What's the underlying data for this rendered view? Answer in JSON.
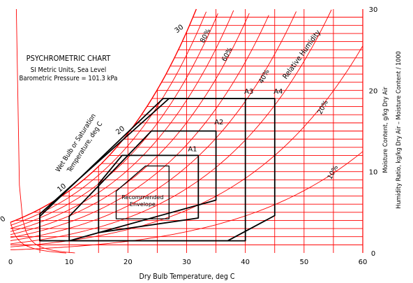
{
  "chart_data": {
    "type": "psychrometric",
    "title": "PSYCHROMETRIC CHART",
    "subtitle_lines": [
      "SI Metric Units, Sea Level",
      "Barometric Pressure = 101.3 kPa"
    ],
    "xlabel": "Dry Bulb Temperature, deg C",
    "ylabel_lines": [
      "Moisture Content, g/kg Dry Air",
      "Humidity Ratio, kg/kg Dry Air – Moisture Content / 1000"
    ],
    "saturation_label_lines": [
      "Wet Bulb or Saturation",
      "Temperature, deg C"
    ],
    "rh_title": "Relative Humidity",
    "xlim": [
      0,
      60
    ],
    "ylim": [
      0,
      30
    ],
    "x_ticks": [
      0,
      10,
      20,
      30,
      40,
      50,
      60
    ],
    "y_ticks": [
      0,
      10,
      20,
      30
    ],
    "x_tick_labels": [
      "0",
      "10",
      "20",
      "30",
      "40",
      "50",
      "60"
    ],
    "y_tick_labels": [
      "0",
      "10",
      "20",
      "30"
    ],
    "wet_bulb_labels": [
      {
        "t": 0,
        "text": "0"
      },
      {
        "t": 10,
        "text": "10"
      },
      {
        "t": 20,
        "text": "20"
      },
      {
        "t": 30,
        "text": "30"
      }
    ],
    "rh_labels": [
      "80%",
      "60%",
      "40%",
      "20%",
      "10%"
    ],
    "rh_label_points": [
      {
        "text": "80%",
        "t": 33.5,
        "w": 26.6
      },
      {
        "text": "60%",
        "t": 37.2,
        "w": 24.3
      },
      {
        "text": "40%",
        "t": 43.5,
        "w": 21.6
      },
      {
        "text": "20%",
        "t": 53.5,
        "w": 17.8
      },
      {
        "text": "10%",
        "t": 55.2,
        "w": 9.8
      }
    ],
    "envelopes": [
      {
        "name": "Recommended Envelope",
        "label_lines": [
          "Recommended",
          "Envelope"
        ],
        "polygon": [
          [
            18,
            4.2
          ],
          [
            27,
            4.2
          ],
          [
            27,
            10.7
          ],
          [
            23,
            10.7
          ],
          [
            18,
            7.6
          ]
        ]
      },
      {
        "name": "A1",
        "polygon": [
          [
            15,
            2.5
          ],
          [
            32,
            4.3
          ],
          [
            32,
            12.0
          ],
          [
            19,
            12.0
          ],
          [
            15,
            8.5
          ]
        ]
      },
      {
        "name": "A2",
        "polygon": [
          [
            10,
            1.5
          ],
          [
            35,
            6.5
          ],
          [
            35,
            15.0
          ],
          [
            24,
            15.0
          ],
          [
            10,
            4.5
          ]
        ]
      },
      {
        "name": "A3",
        "polygon": [
          [
            5,
            1.5
          ],
          [
            40,
            1.5
          ],
          [
            40,
            19.0
          ],
          [
            26,
            19.0
          ],
          [
            5,
            4.5
          ]
        ]
      },
      {
        "name": "A4",
        "polygon": [
          [
            5,
            1.5
          ],
          [
            37,
            1.5
          ],
          [
            45,
            4.6
          ],
          [
            45,
            19.0
          ],
          [
            27,
            19.0
          ],
          [
            5,
            4.8
          ]
        ]
      }
    ],
    "envelope_labels": [
      {
        "text": "A1",
        "t": 31,
        "w": 12.5
      },
      {
        "text": "A2",
        "t": 35.5,
        "w": 15.8
      },
      {
        "text": "A3",
        "t": 40.6,
        "w": 19.6
      },
      {
        "text": "A4",
        "t": 45.6,
        "w": 19.6
      }
    ],
    "colors": {
      "grid": "#ff0000",
      "envelope": "#000000",
      "background": "#ffffff"
    },
    "grid": true,
    "pressure_kpa": 101.3
  }
}
